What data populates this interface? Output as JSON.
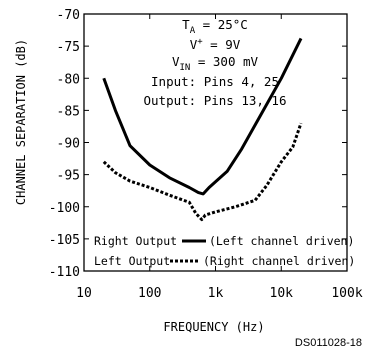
{
  "chart_data": {
    "type": "line",
    "xlabel": "FREQUENCY (Hz)",
    "ylabel": "CHANNEL SEPARATION (dB)",
    "xscale": "log",
    "xlim": [
      10,
      100000
    ],
    "ylim": [
      -110,
      -70
    ],
    "xticks": [
      10,
      100,
      1000,
      10000,
      100000
    ],
    "xtick_labels": [
      "10",
      "100",
      "1k",
      "10k",
      "100k"
    ],
    "yticks": [
      -70,
      -75,
      -80,
      -85,
      -90,
      -95,
      -100,
      -105,
      -110
    ],
    "ytick_labels": [
      "-70",
      "-75",
      "-80",
      "-85",
      "-90",
      "-95",
      "-100",
      "-105",
      "-110"
    ],
    "grid": false,
    "conditions": {
      "ta_sym": "T",
      "ta_sub": "A",
      "ta_val": " = 25°C",
      "vplus": "V",
      "vplus_sup": "+",
      "vplus_val": " = 9V",
      "vin_sym": "V",
      "vin_sub": "IN",
      "vin_val": " = 300 mV",
      "input": "Input: Pins 4, 25",
      "output": "Output: Pins 13, 16"
    },
    "legend": {
      "placement": "bottom",
      "entries": [
        {
          "label": "Right Output",
          "desc": "(Left channel driven)",
          "style": "solid"
        },
        {
          "label": "Left Output",
          "desc": "(Right channel driven)",
          "style": "dotted"
        }
      ]
    },
    "series": [
      {
        "style": "solid",
        "points": [
          [
            20,
            -80
          ],
          [
            30,
            -85
          ],
          [
            50,
            -90.5
          ],
          [
            100,
            -93.5
          ],
          [
            200,
            -95.5
          ],
          [
            400,
            -97
          ],
          [
            550,
            -97.8
          ],
          [
            650,
            -98
          ],
          [
            800,
            -97
          ],
          [
            1500,
            -94.5
          ],
          [
            2500,
            -91
          ],
          [
            5000,
            -85.5
          ],
          [
            10000,
            -80
          ],
          [
            20000,
            -73.8
          ]
        ]
      },
      {
        "style": "dotted",
        "points": [
          [
            20,
            -93
          ],
          [
            30,
            -94.7
          ],
          [
            50,
            -96
          ],
          [
            100,
            -97
          ],
          [
            200,
            -98.2
          ],
          [
            400,
            -99.3
          ],
          [
            500,
            -101
          ],
          [
            620,
            -102
          ],
          [
            700,
            -101.3
          ],
          [
            1000,
            -100.8
          ],
          [
            2000,
            -100
          ],
          [
            4000,
            -99
          ],
          [
            6000,
            -96.7
          ],
          [
            10000,
            -93
          ],
          [
            15000,
            -90.7
          ],
          [
            20000,
            -87
          ]
        ]
      }
    ]
  },
  "figure_code": "DS011028-18"
}
